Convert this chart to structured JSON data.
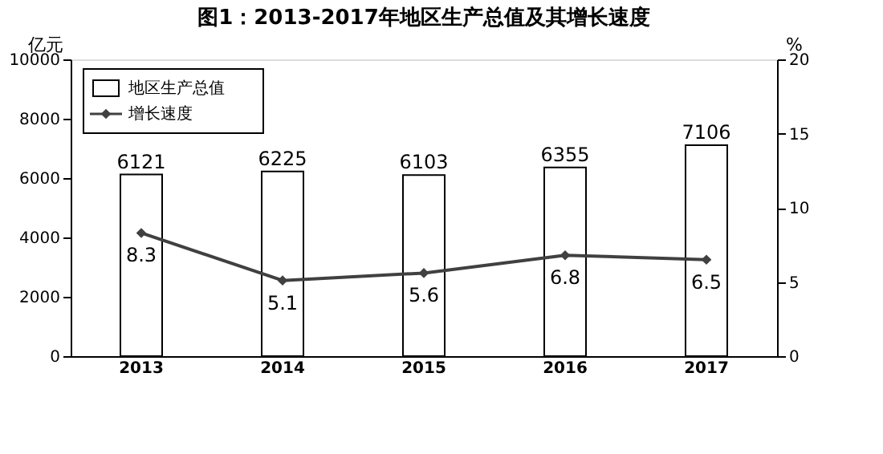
{
  "chart_data": {
    "type": "bar",
    "title": "图1：2013-2017年地区生产总值及其增长速度",
    "ylabel": "亿元",
    "y2label": "%",
    "categories": [
      "2013",
      "2014",
      "2015",
      "2016",
      "2017"
    ],
    "series": [
      {
        "name": "地区生产总值",
        "color": "#ffffff",
        "values": [
          6121,
          6225,
          6103,
          6355,
          7106
        ]
      },
      {
        "name": "增长速度",
        "type": "line",
        "axis": "y2",
        "color": "#404040",
        "values": [
          8.3,
          5.1,
          5.6,
          6.8,
          6.5
        ]
      }
    ],
    "ylim": [
      0,
      10000
    ],
    "yticks": [
      0,
      2000,
      4000,
      6000,
      8000,
      10000
    ],
    "y2lim": [
      0,
      20
    ],
    "y2ticks": [
      0,
      5,
      10,
      15,
      20
    ],
    "data_labels": true,
    "legend": "top left",
    "grid": false,
    "marker": "diamond",
    "line_style": "solid"
  }
}
